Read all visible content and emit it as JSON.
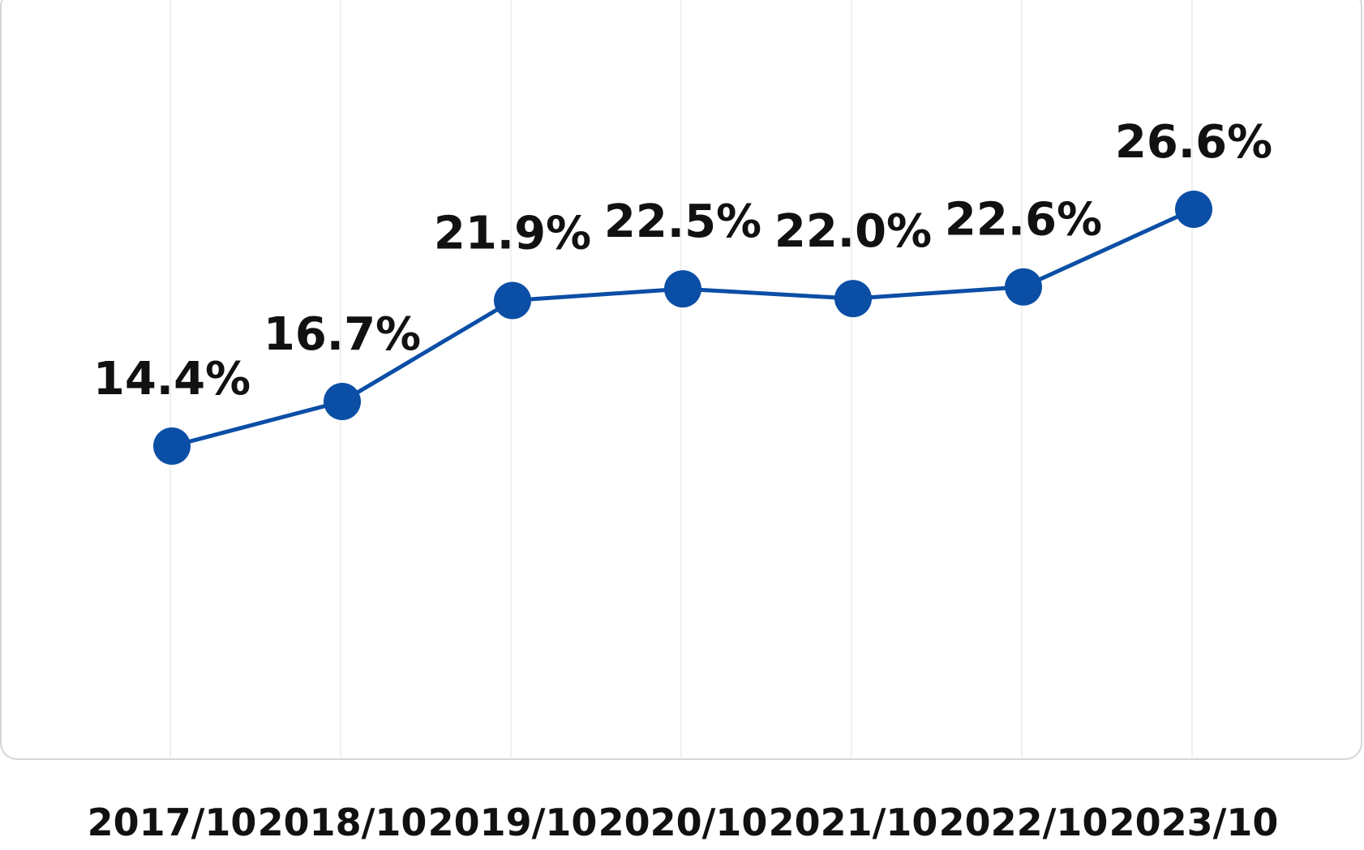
{
  "chart_data": {
    "type": "line",
    "categories": [
      "2017/10",
      "2018/10",
      "2019/10",
      "2020/10",
      "2021/10",
      "2022/10",
      "2023/10"
    ],
    "series": [
      {
        "values": [
          14.4,
          16.7,
          21.9,
          22.5,
          22.0,
          22.6,
          26.6
        ],
        "data_labels": [
          "14.4%",
          "16.7%",
          "21.9%",
          "22.5%",
          "22.0%",
          "22.6%",
          "26.6%"
        ]
      }
    ],
    "title": "",
    "xlabel": "",
    "ylabel": "",
    "ylim": [
      0,
      35
    ],
    "y_axis_visible": false,
    "grid": "vertical",
    "legend": "none",
    "colors": {
      "series": "#0b4ea6",
      "grid": "#ebebeb",
      "frame": "#d6d6d6",
      "text": "#111111"
    }
  }
}
